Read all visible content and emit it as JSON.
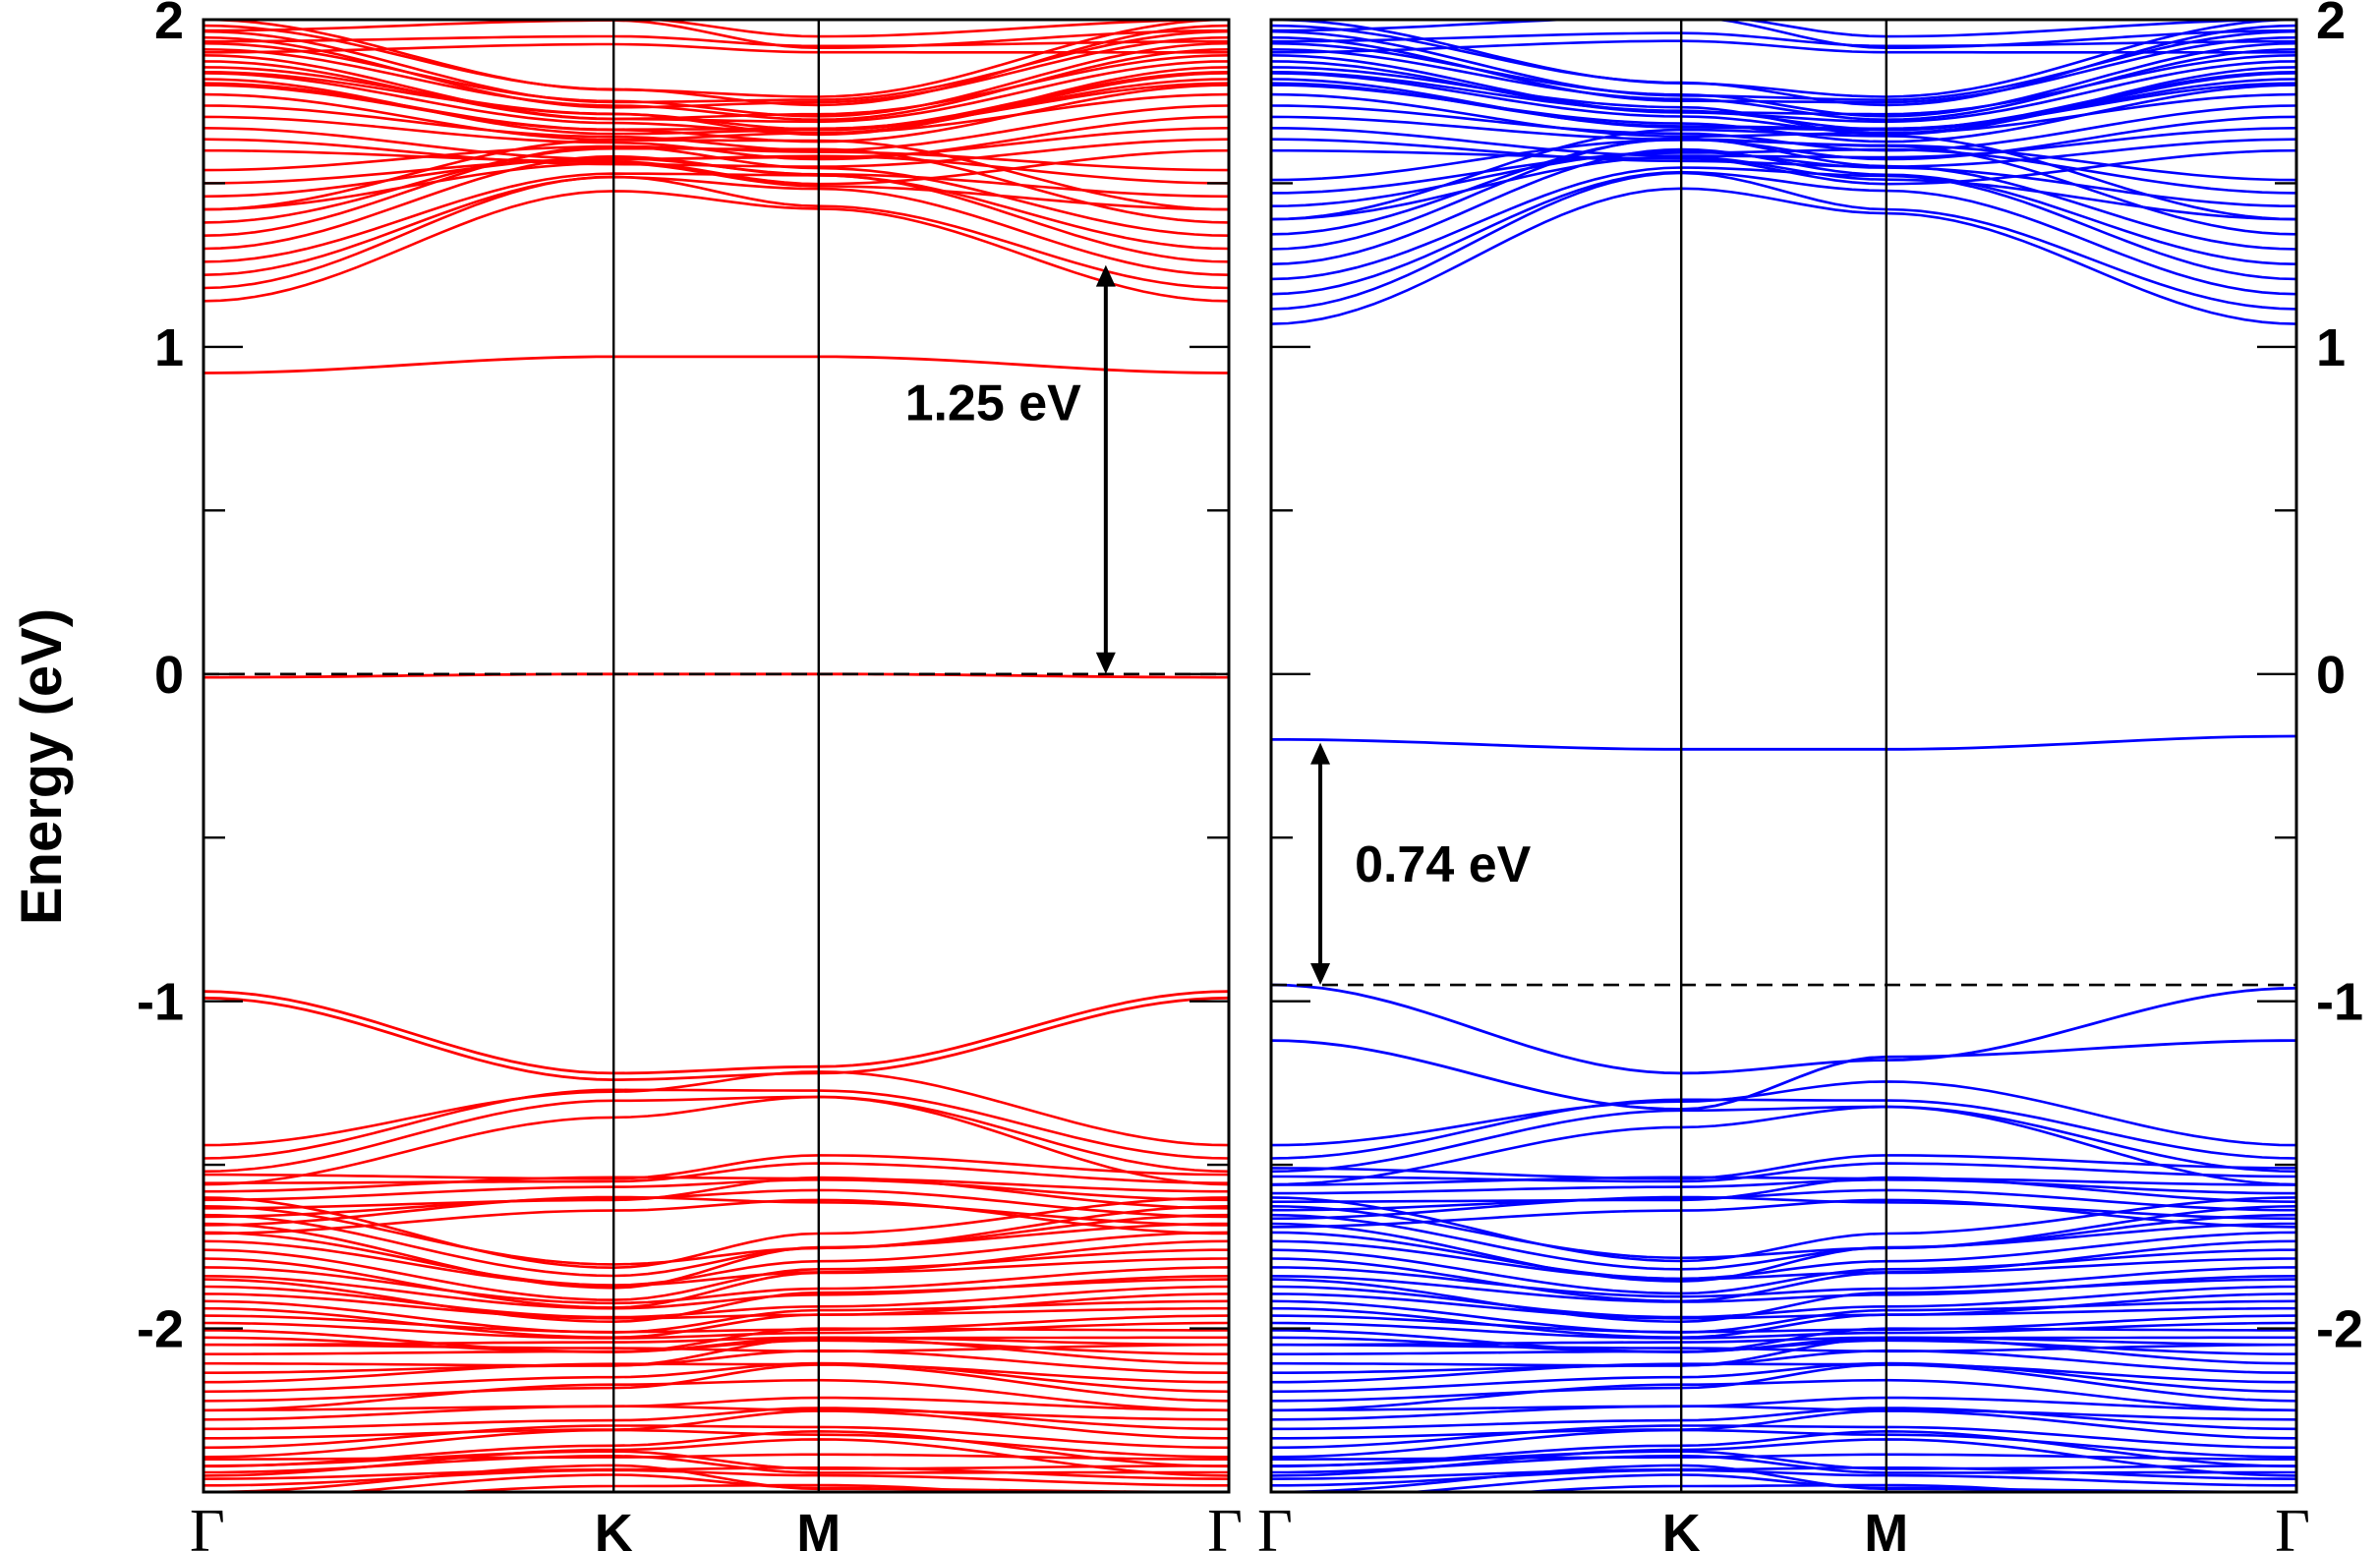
{
  "chart_data": [
    {
      "type": "line",
      "panel": "left",
      "ylabel": "Energy (eV)",
      "ylim": [
        -2.5,
        2.0
      ],
      "yticks": [
        -2,
        -1,
        0,
        1,
        2
      ],
      "ytick_labels": [
        "-2",
        "-1",
        "0",
        "1",
        "2"
      ],
      "kpoints": [
        {
          "label": "Γ",
          "x": 0.0
        },
        {
          "label": "K",
          "x": 1.0
        },
        {
          "label": "M",
          "x": 1.5
        },
        {
          "label": "Γ",
          "x": 2.5
        }
      ],
      "line_color": "#ff0000",
      "fermi_level": 0.0,
      "gap": {
        "label": "1.25 eV",
        "from": 0.0,
        "to": 1.25,
        "x": 2.2
      },
      "bands": [
        {
          "x": [
            0,
            1.0,
            1.5,
            2.5
          ],
          "y": [
            0.92,
            0.97,
            0.97,
            0.92
          ]
        },
        {
          "x": [
            0,
            1.0,
            1.5,
            2.5
          ],
          "y": [
            -0.01,
            0.0,
            0.0,
            -0.01
          ]
        },
        {
          "x": [
            0,
            1.0,
            1.5,
            2.5
          ],
          "y": [
            -0.97,
            -1.22,
            -1.2,
            -0.97
          ]
        },
        {
          "x": [
            0,
            1.0,
            1.5,
            2.5
          ],
          "y": [
            -0.99,
            -1.24,
            -1.22,
            -0.99
          ]
        }
      ],
      "band_families": [
        {
          "y0": 1.28,
          "y1": 1.56,
          "y2": 1.52,
          "count": 8,
          "spread": 0.14
        },
        {
          "y0": 1.48,
          "y1": 1.58,
          "y2": 1.55,
          "count": 4,
          "spread": 0.06
        },
        {
          "y0": 1.72,
          "y1": 1.62,
          "y2": 1.6,
          "count": 8,
          "spread": 0.12
        },
        {
          "y0": 1.9,
          "y1": 1.72,
          "y2": 1.7,
          "count": 12,
          "spread": 0.1
        },
        {
          "y0": 1.95,
          "y1": 1.97,
          "y2": 1.92,
          "count": 4,
          "spread": 0.05
        },
        {
          "y0": -1.5,
          "y1": -1.3,
          "y2": -1.27,
          "count": 4,
          "spread": 0.06
        },
        {
          "y0": -1.62,
          "y1": -1.58,
          "y2": -1.55,
          "count": 8,
          "spread": 0.09
        },
        {
          "y0": -1.72,
          "y1": -1.88,
          "y2": -1.8,
          "count": 10,
          "spread": 0.12
        },
        {
          "y0": -1.95,
          "y1": -2.02,
          "y2": -1.98,
          "count": 10,
          "spread": 0.1
        },
        {
          "y0": -2.15,
          "y1": -2.12,
          "y2": -2.08,
          "count": 8,
          "spread": 0.1
        },
        {
          "y0": -2.35,
          "y1": -2.3,
          "y2": -2.28,
          "count": 8,
          "spread": 0.1
        },
        {
          "y0": -2.47,
          "y1": -2.42,
          "y2": -2.45,
          "count": 8,
          "spread": 0.07
        }
      ]
    },
    {
      "type": "line",
      "panel": "right",
      "ylabel": "",
      "ylim": [
        -2.5,
        2.0
      ],
      "yticks": [
        -2,
        -1,
        0,
        1,
        2
      ],
      "ytick_labels": [
        "-2",
        "-1",
        "0",
        "1",
        "2"
      ],
      "kpoints": [
        {
          "label": "Γ",
          "x": 0.0
        },
        {
          "label": "K",
          "x": 1.0
        },
        {
          "label": "M",
          "x": 1.5
        },
        {
          "label": "Γ",
          "x": 2.5
        }
      ],
      "line_color": "#0000ff",
      "fermi_level": -0.95,
      "gap": {
        "label": "0.74 eV",
        "from": -0.95,
        "to": -0.21,
        "x": 0.12
      },
      "bands": [
        {
          "x": [
            0,
            1.0,
            1.5,
            2.5
          ],
          "y": [
            -0.2,
            -0.23,
            -0.23,
            -0.19
          ]
        },
        {
          "x": [
            0,
            1.0,
            1.5,
            2.5
          ],
          "y": [
            -0.95,
            -1.22,
            -1.18,
            -0.96
          ]
        },
        {
          "x": [
            0,
            1.0,
            1.5,
            2.5
          ],
          "y": [
            -1.12,
            -1.33,
            -1.17,
            -1.12
          ]
        }
      ],
      "band_families": [
        {
          "y0": 1.23,
          "y1": 1.58,
          "y2": 1.52,
          "count": 8,
          "spread": 0.16
        },
        {
          "y0": 1.45,
          "y1": 1.6,
          "y2": 1.57,
          "count": 4,
          "spread": 0.06
        },
        {
          "y0": 1.72,
          "y1": 1.63,
          "y2": 1.6,
          "count": 8,
          "spread": 0.12
        },
        {
          "y0": 1.9,
          "y1": 1.74,
          "y2": 1.7,
          "count": 12,
          "spread": 0.1
        },
        {
          "y0": 1.95,
          "y1": 1.98,
          "y2": 1.92,
          "count": 4,
          "spread": 0.05
        },
        {
          "y0": -1.5,
          "y1": -1.33,
          "y2": -1.3,
          "count": 4,
          "spread": 0.06
        },
        {
          "y0": -1.6,
          "y1": -1.58,
          "y2": -1.55,
          "count": 8,
          "spread": 0.09
        },
        {
          "y0": -1.72,
          "y1": -1.86,
          "y2": -1.8,
          "count": 10,
          "spread": 0.12
        },
        {
          "y0": -1.95,
          "y1": -2.02,
          "y2": -1.98,
          "count": 10,
          "spread": 0.1
        },
        {
          "y0": -2.15,
          "y1": -2.12,
          "y2": -2.08,
          "count": 8,
          "spread": 0.1
        },
        {
          "y0": -2.35,
          "y1": -2.3,
          "y2": -2.28,
          "count": 8,
          "spread": 0.1
        },
        {
          "y0": -2.47,
          "y1": -2.42,
          "y2": -2.45,
          "count": 8,
          "spread": 0.07
        }
      ]
    }
  ]
}
